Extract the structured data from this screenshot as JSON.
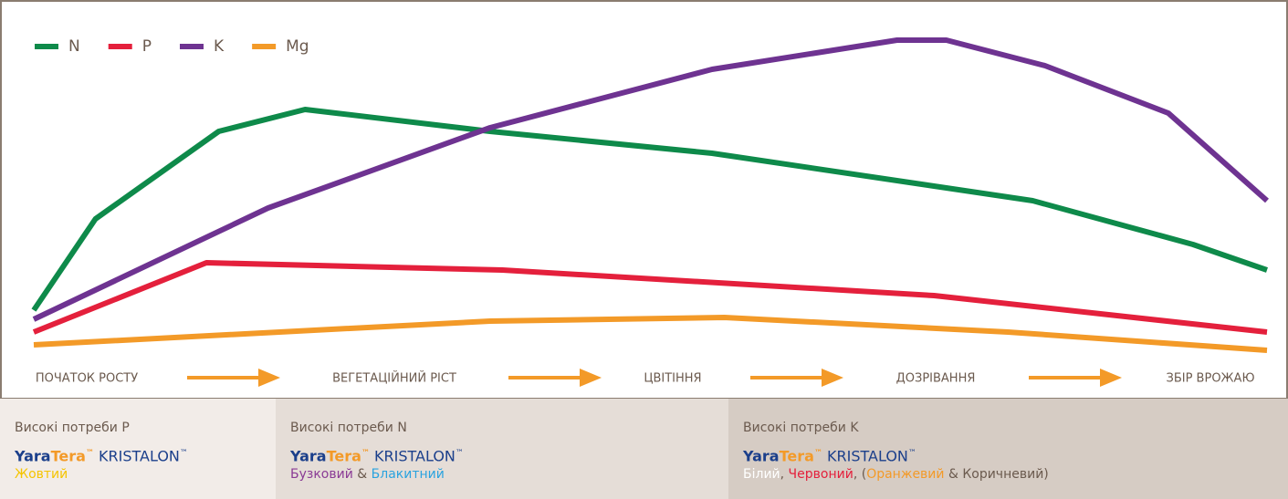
{
  "chart_data": {
    "type": "line",
    "xlim": [
      0,
      100
    ],
    "ylim": [
      0,
      100
    ],
    "series": [
      {
        "name": "N",
        "color": "#0e8a4a",
        "x": [
          0,
          5,
          15,
          22,
          37,
          55,
          71,
          81,
          94,
          100
        ],
        "values": [
          15,
          40,
          64,
          70,
          64,
          58,
          50,
          45,
          33,
          26
        ]
      },
      {
        "name": "P",
        "color": "#e4203c",
        "x": [
          0,
          14,
          38,
          73,
          100
        ],
        "values": [
          9,
          28,
          26,
          19,
          9
        ]
      },
      {
        "name": "K",
        "color": "#6e3391",
        "x": [
          0,
          19,
          37,
          55,
          70,
          74,
          82,
          92,
          100
        ],
        "values": [
          12.5,
          43,
          65,
          81,
          89,
          89,
          82,
          69,
          45
        ]
      },
      {
        "name": "Mg",
        "color": "#f39a28",
        "x": [
          0,
          37,
          56,
          79,
          100
        ],
        "values": [
          5.5,
          12,
          13,
          9,
          4
        ]
      }
    ]
  },
  "stages": [
    "ПОЧАТОК РОСТУ",
    "ВЕГЕТАЦІЙНИЙ РІСТ",
    "ЦВІТІННЯ",
    "ДОЗРІВАННЯ",
    "ЗБІР ВРОЖАЮ"
  ],
  "panels": [
    {
      "heading": "Високі потреби P",
      "brand": [
        "Yara",
        "Tera",
        "™",
        "KRISTALON",
        "™"
      ],
      "colors": [
        {
          "text": "Жовтий",
          "color": "#f5c400"
        }
      ]
    },
    {
      "heading": "Високі потреби N",
      "brand": [
        "Yara",
        "Tera",
        "™",
        "KRISTALON",
        "™"
      ],
      "colors": [
        {
          "text": "Бузковий",
          "color": "#8a3b95"
        },
        {
          "text": " & ",
          "color": "#6b5a4e"
        },
        {
          "text": "Блакитний",
          "color": "#2aa3df"
        }
      ]
    },
    {
      "heading": "Високі потреби K",
      "brand": [
        "Yara",
        "Tera",
        "™",
        "KRISTALON",
        "™"
      ],
      "colors": [
        {
          "text": "Білий",
          "color": "#ffffff"
        },
        {
          "text": ", ",
          "color": "#6b5a4e"
        },
        {
          "text": "Червоний",
          "color": "#e4203c"
        },
        {
          "text": ", (",
          "color": "#6b5a4e"
        },
        {
          "text": "Оранжевий",
          "color": "#f39a28"
        },
        {
          "text": " & Коричневий)",
          "color": "#6b5a4e"
        }
      ]
    }
  ]
}
